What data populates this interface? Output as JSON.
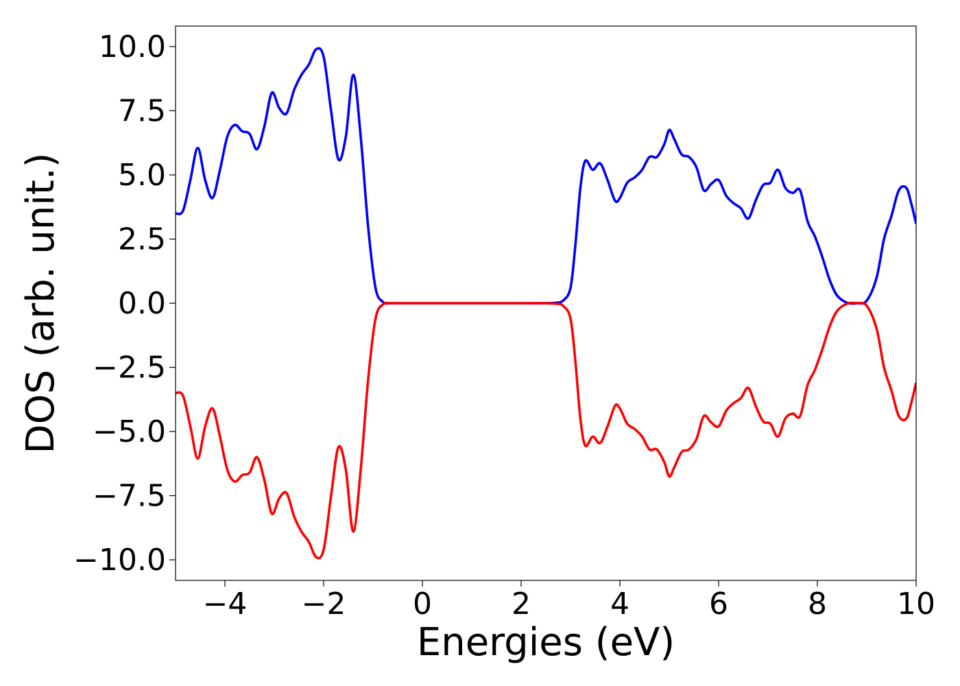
{
  "chart_data": {
    "type": "line",
    "title": "",
    "xlabel": "Energies (eV)",
    "ylabel": "DOS (arb. unit.)",
    "xlim": [
      -5,
      10
    ],
    "ylim": [
      -10.8,
      10.8
    ],
    "xticks": [
      -4,
      -2,
      0,
      2,
      4,
      6,
      8,
      10
    ],
    "xtick_labels": [
      "−4",
      "−2",
      "0",
      "2",
      "4",
      "6",
      "8",
      "10"
    ],
    "yticks": [
      10,
      7.5,
      5,
      2.5,
      0,
      -2.5,
      -5,
      -7.5,
      -10
    ],
    "ytick_labels": [
      "10.0",
      "7.5",
      "5.0",
      "2.5",
      "0.0",
      "−2.5",
      "−5.0",
      "−7.5",
      "−10.0"
    ],
    "grid": false,
    "legend": "none",
    "colors": {
      "spin_up": "#0000ff",
      "spin_down": "#ff0000"
    },
    "series": [
      {
        "color": "#0000ff",
        "x": [
          -5.0,
          -4.85,
          -4.7,
          -4.55,
          -4.4,
          -4.25,
          -4.1,
          -3.95,
          -3.8,
          -3.65,
          -3.5,
          -3.35,
          -3.2,
          -3.05,
          -2.9,
          -2.75,
          -2.6,
          -2.45,
          -2.3,
          -2.15,
          -2.0,
          -1.85,
          -1.7,
          -1.55,
          -1.4,
          -1.25,
          -1.1,
          -0.95,
          -0.8,
          -0.65,
          -0.5,
          0.0,
          0.5,
          1.0,
          1.5,
          2.0,
          2.5,
          2.7,
          2.85,
          3.0,
          3.1,
          3.2,
          3.3,
          3.45,
          3.6,
          3.75,
          3.9,
          4.0,
          4.15,
          4.3,
          4.45,
          4.6,
          4.75,
          4.9,
          5.0,
          5.1,
          5.25,
          5.4,
          5.55,
          5.7,
          5.85,
          6.0,
          6.15,
          6.3,
          6.45,
          6.6,
          6.75,
          6.9,
          7.05,
          7.2,
          7.35,
          7.5,
          7.65,
          7.8,
          7.95,
          8.1,
          8.25,
          8.4,
          8.6,
          8.8,
          9.0,
          9.2,
          9.35,
          9.5,
          9.65,
          9.8,
          9.9,
          10.0
        ],
        "y": [
          3.5,
          3.6,
          4.8,
          6.05,
          4.8,
          4.1,
          5.2,
          6.5,
          6.95,
          6.7,
          6.6,
          6.0,
          6.9,
          8.2,
          7.6,
          7.4,
          8.3,
          8.9,
          9.3,
          9.9,
          9.6,
          7.5,
          5.6,
          6.5,
          8.9,
          6.5,
          3.0,
          0.6,
          0.05,
          0.0,
          0.0,
          0.0,
          0.0,
          0.0,
          0.0,
          0.0,
          0.0,
          0.02,
          0.1,
          0.6,
          2.3,
          4.5,
          5.55,
          5.2,
          5.45,
          4.8,
          4.0,
          4.1,
          4.7,
          4.9,
          5.2,
          5.7,
          5.7,
          6.2,
          6.75,
          6.4,
          5.8,
          5.7,
          5.3,
          4.4,
          4.65,
          4.8,
          4.2,
          3.9,
          3.7,
          3.3,
          4.0,
          4.6,
          4.7,
          5.2,
          4.5,
          4.3,
          4.4,
          3.2,
          2.6,
          1.8,
          0.9,
          0.3,
          0.02,
          0.0,
          0.1,
          1.0,
          2.5,
          3.4,
          4.4,
          4.5,
          3.9,
          3.1
        ]
      },
      {
        "color": "#ff0000",
        "x": [
          -5.0,
          -4.85,
          -4.7,
          -4.55,
          -4.4,
          -4.25,
          -4.1,
          -3.95,
          -3.8,
          -3.65,
          -3.5,
          -3.35,
          -3.2,
          -3.05,
          -2.9,
          -2.75,
          -2.6,
          -2.45,
          -2.3,
          -2.15,
          -2.0,
          -1.85,
          -1.7,
          -1.55,
          -1.4,
          -1.25,
          -1.1,
          -0.95,
          -0.8,
          -0.65,
          -0.5,
          0.0,
          0.5,
          1.0,
          1.5,
          2.0,
          2.5,
          2.7,
          2.85,
          3.0,
          3.1,
          3.2,
          3.3,
          3.45,
          3.6,
          3.75,
          3.9,
          4.0,
          4.15,
          4.3,
          4.45,
          4.6,
          4.75,
          4.9,
          5.0,
          5.1,
          5.25,
          5.4,
          5.55,
          5.7,
          5.85,
          6.0,
          6.15,
          6.3,
          6.45,
          6.6,
          6.75,
          6.9,
          7.05,
          7.2,
          7.35,
          7.5,
          7.65,
          7.8,
          7.95,
          8.1,
          8.25,
          8.4,
          8.6,
          8.8,
          9.0,
          9.2,
          9.35,
          9.5,
          9.65,
          9.8,
          9.9,
          10.0
        ],
        "y": [
          -3.5,
          -3.6,
          -4.8,
          -6.05,
          -4.8,
          -4.1,
          -5.2,
          -6.5,
          -6.95,
          -6.7,
          -6.6,
          -6.0,
          -6.9,
          -8.2,
          -7.6,
          -7.4,
          -8.3,
          -8.9,
          -9.3,
          -9.9,
          -9.6,
          -7.5,
          -5.6,
          -6.5,
          -8.9,
          -6.5,
          -3.0,
          -0.6,
          -0.05,
          0.0,
          0.0,
          0.0,
          0.0,
          0.0,
          0.0,
          0.0,
          0.0,
          -0.02,
          -0.1,
          -0.6,
          -2.3,
          -4.5,
          -5.55,
          -5.2,
          -5.45,
          -4.8,
          -4.0,
          -4.1,
          -4.7,
          -4.9,
          -5.2,
          -5.7,
          -5.7,
          -6.2,
          -6.75,
          -6.4,
          -5.8,
          -5.7,
          -5.3,
          -4.4,
          -4.65,
          -4.8,
          -4.2,
          -3.9,
          -3.7,
          -3.3,
          -4.0,
          -4.6,
          -4.7,
          -5.2,
          -4.5,
          -4.3,
          -4.4,
          -3.2,
          -2.6,
          -1.8,
          -0.9,
          -0.3,
          -0.02,
          0.0,
          -0.1,
          -1.0,
          -2.5,
          -3.4,
          -4.4,
          -4.5,
          -3.9,
          -3.1
        ]
      }
    ]
  }
}
